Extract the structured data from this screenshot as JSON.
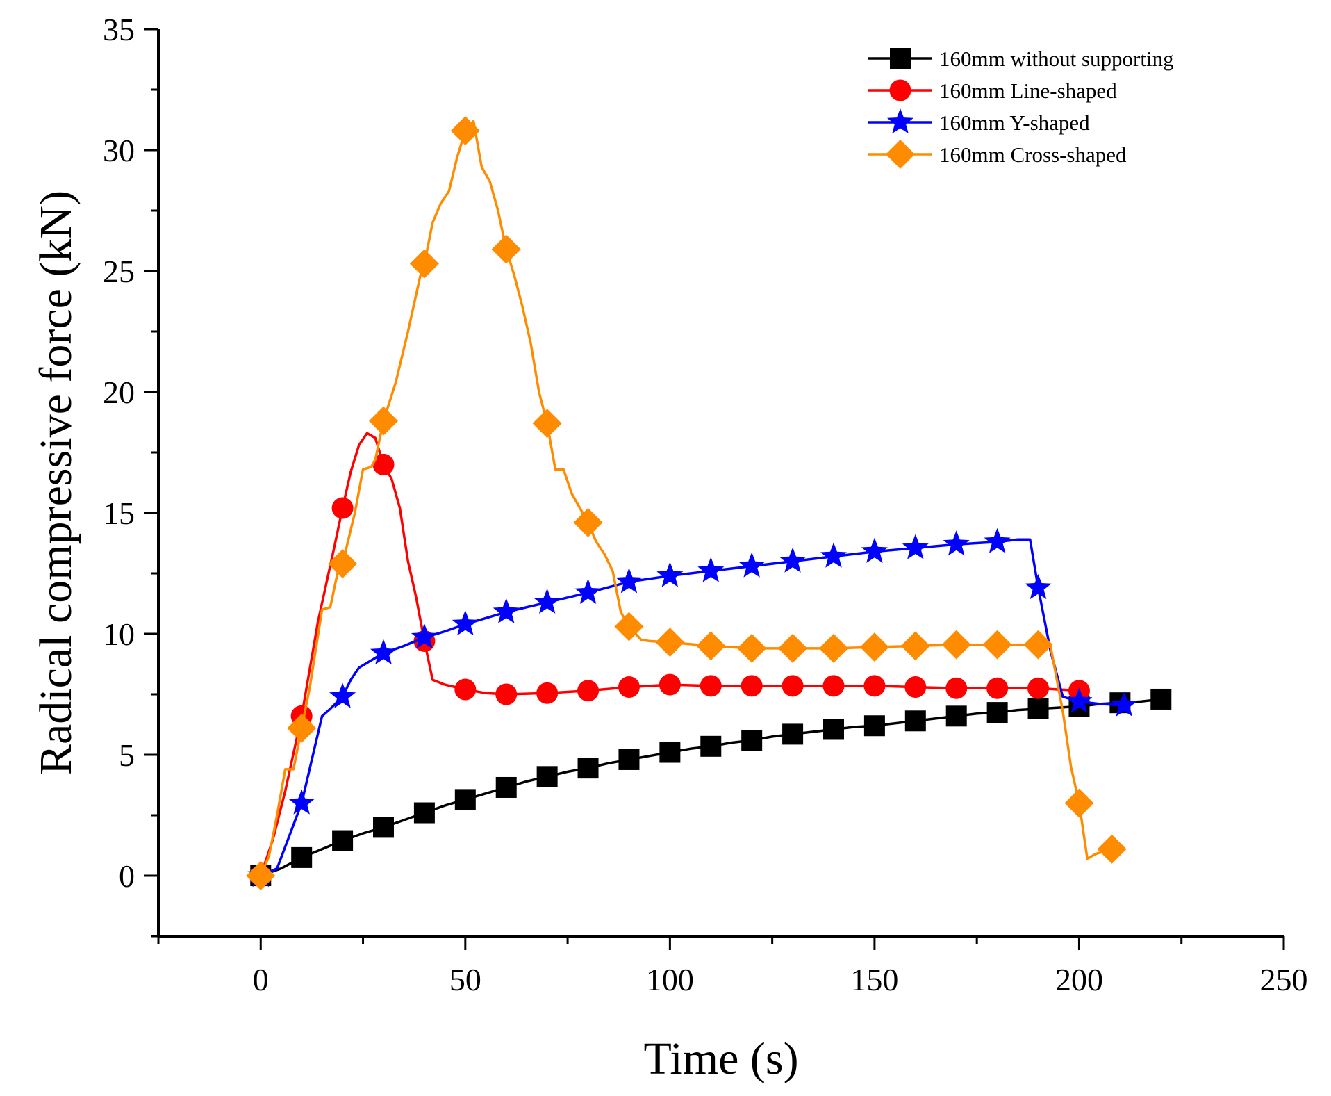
{
  "chart_data": {
    "type": "line",
    "title": "",
    "xlabel": "Time (s)",
    "ylabel": "Radical compressive force (kN)",
    "xlim": [
      -25,
      250
    ],
    "ylim": [
      -2.5,
      35
    ],
    "xticks": [
      0,
      50,
      100,
      150,
      200,
      250
    ],
    "yticks": [
      0,
      5,
      10,
      15,
      20,
      25,
      30,
      35
    ],
    "grid": false,
    "legend_position": "top-right",
    "series": [
      {
        "name": "160mm without supporting",
        "color": "#000000",
        "marker": "square",
        "x": [
          0,
          5,
          10,
          15,
          20,
          25,
          30,
          35,
          40,
          45,
          50,
          55,
          60,
          65,
          70,
          75,
          80,
          85,
          90,
          95,
          100,
          105,
          110,
          115,
          120,
          125,
          130,
          135,
          140,
          145,
          150,
          155,
          160,
          165,
          170,
          175,
          180,
          185,
          190,
          195,
          200,
          205,
          210,
          215,
          220
        ],
        "y": [
          0,
          0.3,
          0.75,
          1.1,
          1.45,
          1.75,
          2.0,
          2.3,
          2.6,
          2.9,
          3.15,
          3.4,
          3.65,
          3.9,
          4.1,
          4.3,
          4.45,
          4.65,
          4.8,
          4.95,
          5.1,
          5.25,
          5.35,
          5.5,
          5.6,
          5.75,
          5.85,
          5.95,
          6.05,
          6.15,
          6.2,
          6.3,
          6.4,
          6.5,
          6.6,
          6.7,
          6.75,
          6.85,
          6.9,
          6.95,
          7.0,
          7.1,
          7.15,
          7.2,
          7.3
        ],
        "marker_x": [
          0,
          10,
          20,
          30,
          40,
          50,
          60,
          70,
          80,
          90,
          100,
          110,
          120,
          130,
          140,
          150,
          160,
          170,
          180,
          190,
          200,
          210,
          220
        ],
        "marker_y": [
          0,
          0.75,
          1.45,
          2.0,
          2.6,
          3.15,
          3.65,
          4.1,
          4.45,
          4.8,
          5.1,
          5.35,
          5.6,
          5.85,
          6.05,
          6.2,
          6.4,
          6.6,
          6.75,
          6.9,
          7.0,
          7.15,
          7.3
        ]
      },
      {
        "name": "160mm Line-shaped",
        "color": "#ff0000",
        "marker": "circle",
        "x": [
          0,
          3,
          6,
          10,
          14,
          18,
          20,
          22,
          24,
          26,
          28,
          30,
          32,
          34,
          36,
          38,
          40,
          42,
          45,
          50,
          55,
          60,
          70,
          80,
          90,
          100,
          110,
          120,
          130,
          140,
          150,
          160,
          170,
          180,
          190,
          200
        ],
        "y": [
          0,
          1.5,
          3.5,
          6.6,
          10.5,
          13.6,
          15.2,
          16.7,
          17.8,
          18.3,
          18.1,
          17.0,
          16.4,
          15.2,
          13.0,
          11.5,
          9.7,
          8.1,
          7.9,
          7.7,
          7.55,
          7.5,
          7.55,
          7.65,
          7.8,
          7.9,
          7.85,
          7.85,
          7.85,
          7.85,
          7.85,
          7.8,
          7.75,
          7.75,
          7.75,
          7.65
        ],
        "marker_x": [
          0,
          10,
          20,
          30,
          40,
          50,
          60,
          70,
          80,
          90,
          100,
          110,
          120,
          130,
          140,
          150,
          160,
          170,
          180,
          190,
          200
        ],
        "marker_y": [
          0,
          6.6,
          15.2,
          17.0,
          9.7,
          7.7,
          7.5,
          7.55,
          7.65,
          7.8,
          7.9,
          7.85,
          7.85,
          7.85,
          7.85,
          7.85,
          7.8,
          7.75,
          7.75,
          7.75,
          7.65
        ]
      },
      {
        "name": "160mm Y-shaped",
        "color": "#0000ff",
        "marker": "star",
        "x": [
          0,
          4,
          10,
          15,
          17,
          20,
          22,
          24,
          26,
          30,
          35,
          40,
          45,
          50,
          55,
          60,
          70,
          80,
          90,
          100,
          110,
          120,
          130,
          140,
          150,
          160,
          170,
          180,
          185,
          188,
          190,
          193,
          196,
          200,
          205,
          211
        ],
        "y": [
          0,
          0.3,
          3.0,
          6.6,
          6.9,
          7.4,
          8.1,
          8.6,
          8.8,
          9.2,
          9.5,
          9.85,
          10.1,
          10.4,
          10.65,
          10.9,
          11.3,
          11.7,
          12.15,
          12.4,
          12.6,
          12.8,
          13.0,
          13.2,
          13.4,
          13.55,
          13.7,
          13.8,
          13.9,
          13.9,
          11.9,
          9.3,
          7.4,
          7.2,
          7.1,
          7.05
        ],
        "marker_x": [
          0,
          10,
          20,
          30,
          40,
          50,
          60,
          70,
          80,
          90,
          100,
          110,
          120,
          130,
          140,
          150,
          160,
          170,
          180,
          190,
          200,
          211
        ],
        "marker_y": [
          0,
          3.0,
          7.4,
          9.2,
          9.85,
          10.4,
          10.9,
          11.3,
          11.7,
          12.15,
          12.4,
          12.6,
          12.8,
          13.0,
          13.2,
          13.4,
          13.55,
          13.7,
          13.8,
          11.9,
          7.2,
          7.05
        ]
      },
      {
        "name": "160mm Cross-shaped",
        "color": "#ff8c00",
        "marker": "diamond",
        "x": [
          0,
          2,
          4,
          6,
          8,
          10,
          12,
          15,
          17,
          19,
          20,
          23,
          25,
          27,
          28,
          30,
          33,
          36,
          39,
          40,
          42,
          44,
          46,
          48,
          50,
          52,
          54,
          56,
          58,
          60,
          62,
          64,
          66,
          68,
          70,
          72,
          74,
          76,
          78,
          80,
          82,
          84,
          86,
          88,
          90,
          93,
          95,
          100,
          110,
          120,
          130,
          140,
          150,
          160,
          170,
          180,
          190,
          193,
          196,
          198,
          200,
          202,
          204,
          208
        ],
        "y": [
          0,
          0.8,
          2.5,
          4.4,
          4.4,
          6.1,
          7.8,
          11.0,
          11.1,
          12.7,
          12.9,
          15.0,
          16.8,
          16.9,
          17.2,
          18.8,
          20.4,
          22.5,
          24.8,
          25.3,
          27.0,
          27.8,
          28.3,
          29.7,
          30.8,
          31.2,
          29.3,
          28.7,
          27.5,
          25.9,
          24.8,
          23.5,
          22.0,
          20.0,
          18.7,
          16.8,
          16.8,
          15.8,
          15.2,
          14.6,
          13.8,
          13.3,
          12.6,
          10.9,
          10.3,
          9.75,
          9.7,
          9.65,
          9.5,
          9.4,
          9.4,
          9.4,
          9.45,
          9.5,
          9.55,
          9.55,
          9.55,
          9.5,
          6.8,
          4.5,
          3.0,
          0.7,
          0.9,
          1.1
        ],
        "marker_x": [
          0,
          10,
          20,
          30,
          40,
          50,
          60,
          70,
          80,
          90,
          100,
          110,
          120,
          130,
          140,
          150,
          160,
          170,
          180,
          190,
          200,
          208
        ],
        "marker_y": [
          0,
          6.1,
          12.9,
          18.8,
          25.3,
          30.8,
          25.9,
          18.7,
          14.6,
          10.3,
          9.65,
          9.5,
          9.4,
          9.4,
          9.4,
          9.45,
          9.5,
          9.55,
          9.55,
          9.55,
          3.0,
          1.1
        ]
      }
    ]
  }
}
